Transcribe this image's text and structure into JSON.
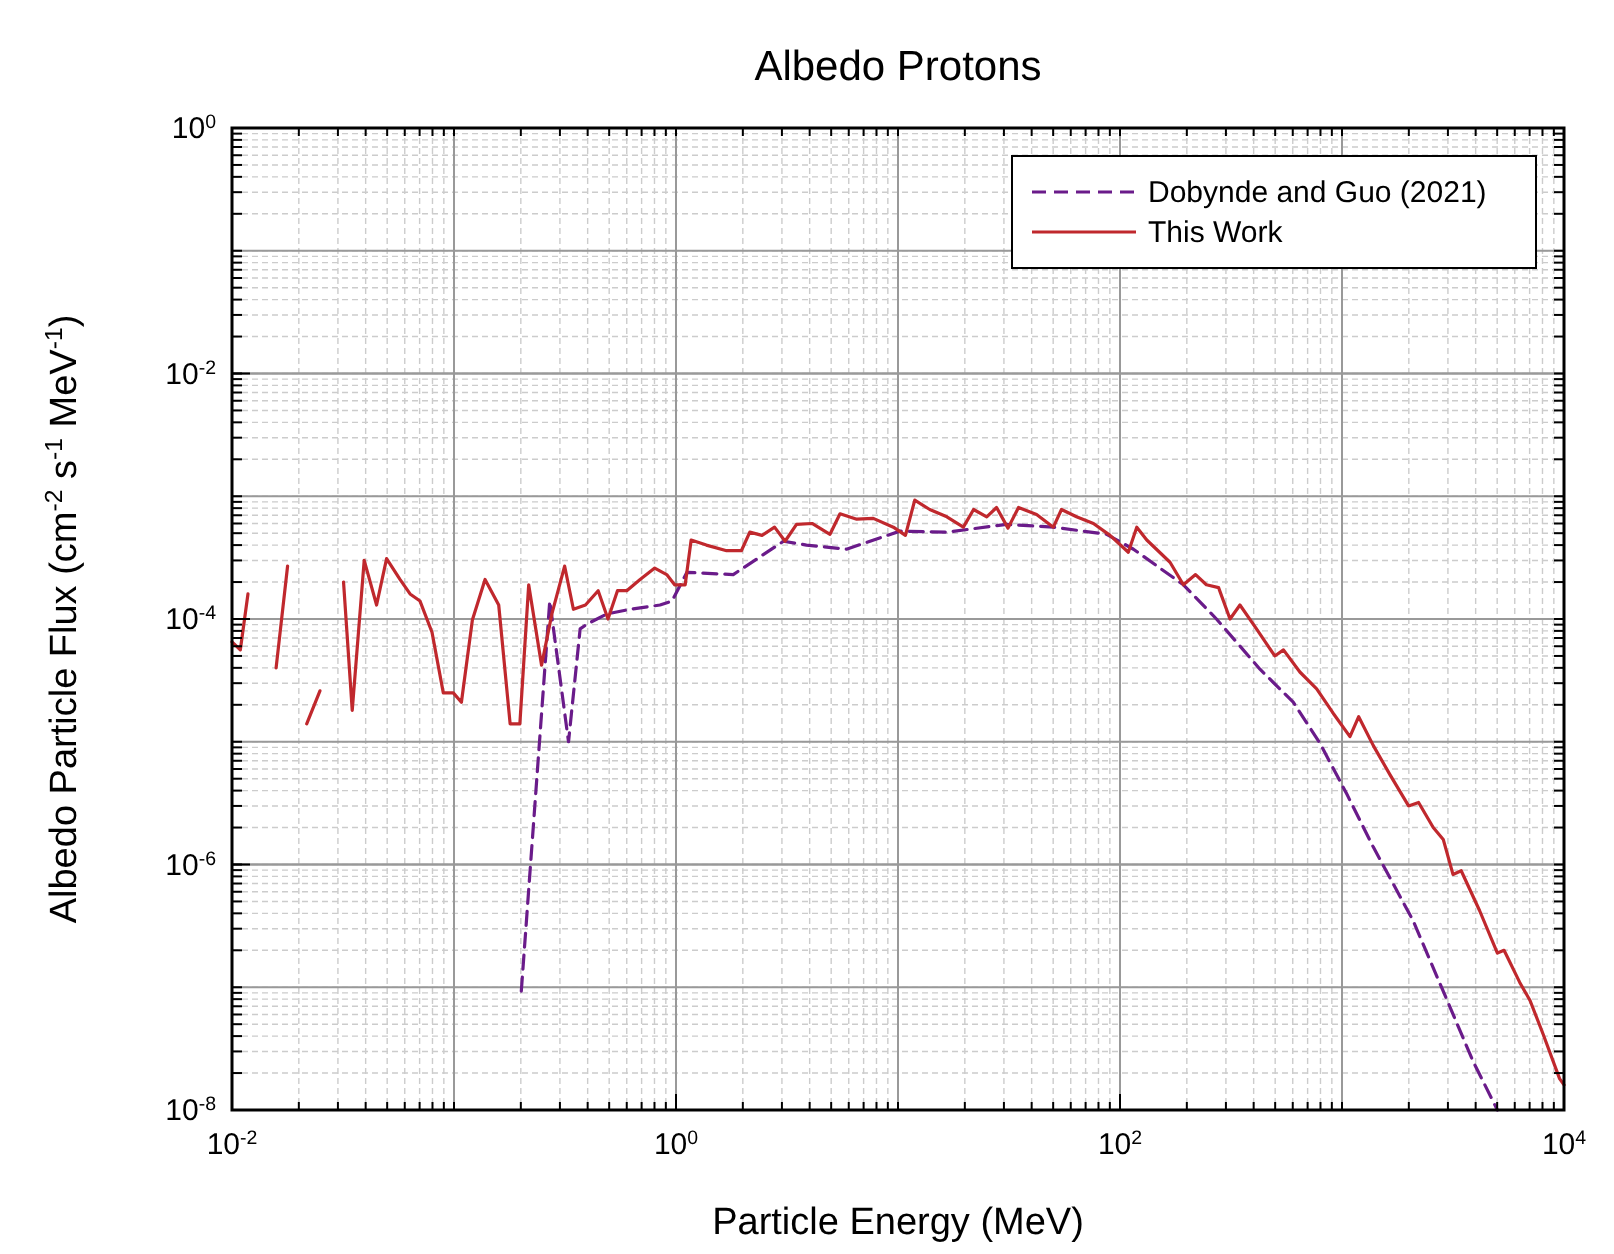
{
  "chart_data": {
    "type": "line",
    "title": "Albedo Protons",
    "xlabel": "Particle Energy (MeV)",
    "ylabel": "Albedo Particle Flux (cm$^{-2}$ s$^{-1}$ MeV$^{-1}$)",
    "log": "xy",
    "grid": true,
    "legend": "top right",
    "xlim": [
      0.01,
      10000
    ],
    "ylim": [
      1e-08,
      1
    ],
    "xticks": [
      {
        "value": 0.01,
        "label": "10$^{-2}$"
      },
      {
        "value": 1,
        "label": "10$^{0}$"
      },
      {
        "value": 100,
        "label": "10$^{2}$"
      },
      {
        "value": 10000,
        "label": "10$^{4}$"
      }
    ],
    "yticks": [
      {
        "value": 1e-08,
        "label": "10$^{-8}$"
      },
      {
        "value": 1e-06,
        "label": "10$^{-6}$"
      },
      {
        "value": 0.0001,
        "label": "10$^{-4}$"
      },
      {
        "value": 0.01,
        "label": "10$^{-2}$"
      },
      {
        "value": 1,
        "label": "10$^{0}$"
      }
    ],
    "series": [
      {
        "name": "Dobynde and Guo (2021)",
        "color": "#6a1b8a",
        "line_style": "dashed",
        "x": [
          0.201,
          0.27,
          0.328,
          0.37,
          0.398,
          0.488,
          0.621,
          0.847,
          0.959,
          1.12,
          1.81,
          3.05,
          3.87,
          5.86,
          10.2,
          16.6,
          30.8,
          50.1,
          87.1,
          115,
          193,
          272,
          427,
          603,
          794,
          1047,
          1380,
          2089,
          2951,
          3890,
          5012
        ],
        "values": [
          9.3e-08,
          0.00014,
          1e-05,
          8.3e-05,
          9.1e-05,
          0.00011,
          0.00012,
          0.00013,
          0.00014,
          0.00024,
          0.00023,
          0.00043,
          0.0004,
          0.00037,
          0.00052,
          0.00051,
          0.00059,
          0.00056,
          0.00049,
          0.00037,
          0.00019,
          0.0001,
          3.9e-05,
          2.1e-05,
          9.8e-06,
          3.8e-06,
          1.4e-06,
          3.5e-07,
          8.1e-08,
          2.5e-08,
          1e-08
        ]
      },
      {
        "name": "This Work",
        "color": "#c0282d",
        "line_style": "solid",
        "x": [
          0.01,
          0.0109,
          0.0118,
          0.013,
          0.0158,
          0.0178,
          0.02,
          0.0217,
          0.0249,
          0.028,
          0.0318,
          0.0348,
          0.0394,
          0.0448,
          0.0497,
          0.0571,
          0.0634,
          0.0703,
          0.0796,
          0.0895,
          0.0993,
          0.108,
          0.121,
          0.138,
          0.159,
          0.179,
          0.198,
          0.217,
          0.248,
          0.276,
          0.315,
          0.345,
          0.391,
          0.446,
          0.494,
          0.545,
          0.6,
          0.689,
          0.802,
          0.908,
          0.986,
          1.1,
          1.17,
          1.37,
          1.69,
          1.97,
          2.15,
          2.44,
          2.78,
          3.1,
          3.49,
          4.1,
          4.94,
          5.48,
          6.52,
          7.74,
          9.53,
          10.8,
          11.9,
          13.9,
          16.6,
          19.7,
          21.9,
          25.1,
          27.8,
          31.3,
          34.9,
          42.1,
          50.1,
          54.5,
          63.7,
          75.9,
          90.2,
          109,
          119,
          132,
          168,
          193,
          219,
          245,
          278,
          313,
          347,
          412,
          498,
          545,
          646,
          769,
          914,
          1086,
          1189,
          1384,
          1644,
          1995,
          2213,
          2576,
          2858,
          3162,
          3443,
          4169,
          5012,
          5370,
          6310,
          7031,
          8072,
          9550,
          10000
        ],
        "values": [
          6.5e-05,
          5.6e-05,
          0.00016,
          null,
          4e-05,
          0.00027,
          null,
          1.4e-05,
          2.6e-05,
          null,
          0.0002,
          1.8e-05,
          0.0003,
          0.00013,
          0.00031,
          0.00021,
          0.00016,
          0.00014,
          7.8e-05,
          2.5e-05,
          2.5e-05,
          2.1e-05,
          9.8e-05,
          0.00021,
          0.00013,
          1.4e-05,
          1.4e-05,
          0.00019,
          4.2e-05,
          0.00011,
          0.00027,
          0.00012,
          0.00013,
          0.00017,
          0.0001,
          0.00017,
          0.00017,
          0.00021,
          0.00026,
          0.00023,
          0.00019,
          0.00019,
          0.00044,
          0.0004,
          0.00036,
          0.00036,
          0.00051,
          0.00048,
          0.00056,
          0.00043,
          0.00059,
          0.0006,
          0.00049,
          0.00072,
          0.00065,
          0.00066,
          0.00056,
          0.00048,
          0.00093,
          0.00078,
          0.00068,
          0.00056,
          0.00078,
          0.00068,
          0.00081,
          0.00055,
          0.00081,
          0.00071,
          0.00056,
          0.00078,
          0.00068,
          0.0006,
          0.00048,
          0.00035,
          0.00056,
          0.00044,
          0.00029,
          0.00019,
          0.00023,
          0.00019,
          0.00018,
          0.0001,
          0.00013,
          8.3e-05,
          5e-05,
          5.6e-05,
          3.7e-05,
          2.7e-05,
          1.7e-05,
          1.1e-05,
          1.6e-05,
          9.3e-06,
          5.4e-06,
          3e-06,
          3.2e-06,
          2e-06,
          1.6e-06,
          8.3e-07,
          8.9e-07,
          4.2e-07,
          1.9e-07,
          2e-07,
          1.1e-07,
          7.8e-08,
          4.1e-08,
          1.8e-08,
          1.6e-08
        ]
      }
    ]
  }
}
